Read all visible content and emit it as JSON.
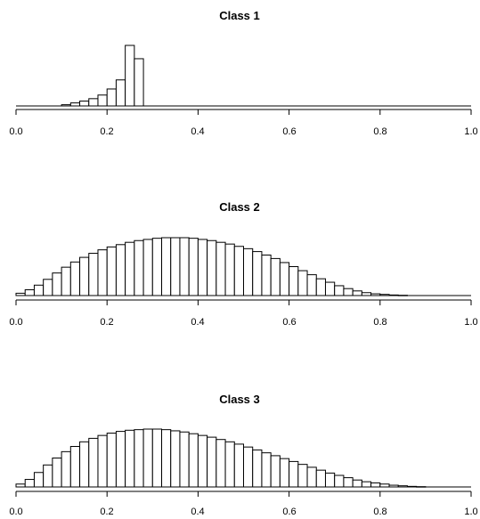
{
  "chart_data": [
    {
      "type": "histogram",
      "title": "Class 1",
      "xlim": [
        0.0,
        1.0
      ],
      "ylim": [
        0,
        1
      ],
      "xticks": [
        "0.0",
        "0.2",
        "0.4",
        "0.6",
        "0.8",
        "1.0"
      ],
      "bin_width": 0.02,
      "bins_start": [
        0.1,
        0.12,
        0.14,
        0.16,
        0.18,
        0.2,
        0.22,
        0.24,
        0.26
      ],
      "values": [
        0.02,
        0.05,
        0.08,
        0.12,
        0.18,
        0.28,
        0.43,
        1.0,
        0.78
      ],
      "grid": false,
      "legend": false
    },
    {
      "type": "histogram",
      "title": "Class 2",
      "xlim": [
        0.0,
        1.0
      ],
      "ylim": [
        0,
        1
      ],
      "xticks": [
        "0.0",
        "0.2",
        "0.4",
        "0.6",
        "0.8",
        "1.0"
      ],
      "bin_width": 0.02,
      "bins_start": [
        0.0,
        0.02,
        0.04,
        0.06,
        0.08,
        0.1,
        0.12,
        0.14,
        0.16,
        0.18,
        0.2,
        0.22,
        0.24,
        0.26,
        0.28,
        0.3,
        0.32,
        0.34,
        0.36,
        0.38,
        0.4,
        0.42,
        0.44,
        0.46,
        0.48,
        0.5,
        0.52,
        0.54,
        0.56,
        0.58,
        0.6,
        0.62,
        0.64,
        0.66,
        0.68,
        0.7,
        0.72,
        0.74,
        0.76,
        0.78,
        0.8,
        0.82,
        0.84
      ],
      "values": [
        0.04,
        0.1,
        0.18,
        0.28,
        0.39,
        0.49,
        0.58,
        0.66,
        0.73,
        0.79,
        0.84,
        0.88,
        0.92,
        0.95,
        0.97,
        0.99,
        1.0,
        1.0,
        1.0,
        0.99,
        0.97,
        0.95,
        0.92,
        0.89,
        0.85,
        0.81,
        0.76,
        0.7,
        0.64,
        0.57,
        0.5,
        0.43,
        0.36,
        0.29,
        0.23,
        0.17,
        0.12,
        0.08,
        0.05,
        0.03,
        0.02,
        0.01,
        0.005
      ],
      "grid": false,
      "legend": false
    },
    {
      "type": "histogram",
      "title": "Class 3",
      "xlim": [
        0.0,
        1.0
      ],
      "ylim": [
        0,
        1
      ],
      "xticks": [
        "0.0",
        "0.2",
        "0.4",
        "0.6",
        "0.8",
        "1.0"
      ],
      "bin_width": 0.02,
      "bins_start": [
        0.0,
        0.02,
        0.04,
        0.06,
        0.08,
        0.1,
        0.12,
        0.14,
        0.16,
        0.18,
        0.2,
        0.22,
        0.24,
        0.26,
        0.28,
        0.3,
        0.32,
        0.34,
        0.36,
        0.38,
        0.4,
        0.42,
        0.44,
        0.46,
        0.48,
        0.5,
        0.52,
        0.54,
        0.56,
        0.58,
        0.6,
        0.62,
        0.64,
        0.66,
        0.68,
        0.7,
        0.72,
        0.74,
        0.76,
        0.78,
        0.8,
        0.82,
        0.84,
        0.86,
        0.88
      ],
      "values": [
        0.05,
        0.13,
        0.25,
        0.38,
        0.5,
        0.61,
        0.7,
        0.78,
        0.84,
        0.89,
        0.93,
        0.96,
        0.98,
        0.99,
        1.0,
        1.0,
        0.99,
        0.97,
        0.95,
        0.92,
        0.89,
        0.86,
        0.82,
        0.78,
        0.74,
        0.69,
        0.64,
        0.59,
        0.54,
        0.49,
        0.44,
        0.39,
        0.34,
        0.29,
        0.24,
        0.2,
        0.16,
        0.12,
        0.09,
        0.07,
        0.05,
        0.03,
        0.02,
        0.01,
        0.005
      ],
      "grid": false,
      "legend": false
    }
  ]
}
